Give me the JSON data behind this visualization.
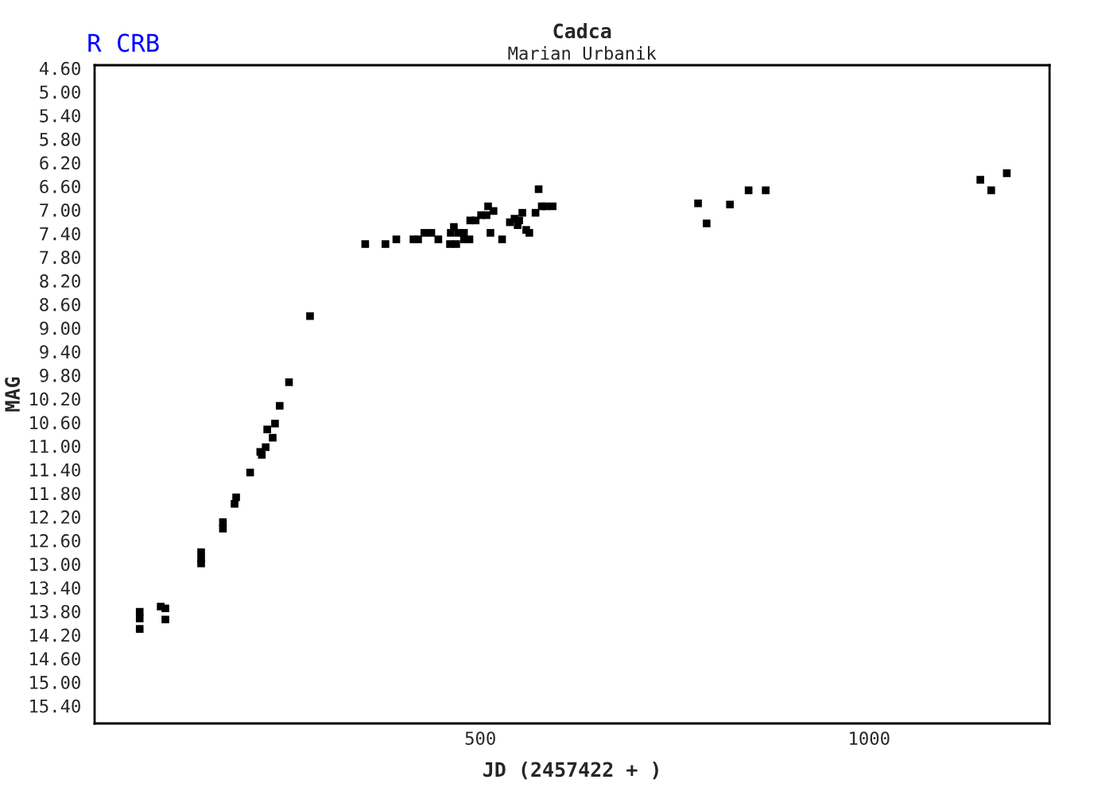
{
  "chart_data": {
    "type": "scatter",
    "title": "Cadca",
    "subtitle": "Marian Urbanik",
    "xlabel": "JD (2457422 + )",
    "ylabel": "MAG",
    "annotations": [
      "R CRB"
    ],
    "marker": "square",
    "grid": false,
    "xlim": [
      4,
      1232
    ],
    "xticks": [
      500,
      1000
    ],
    "ylim": [
      15.7,
      4.55
    ],
    "yticks": [
      {
        "value": 4.6,
        "label": "4.60"
      },
      {
        "value": 5.0,
        "label": "5.00"
      },
      {
        "value": 5.4,
        "label": "5.40"
      },
      {
        "value": 5.8,
        "label": "5.80"
      },
      {
        "value": 6.2,
        "label": "6.20"
      },
      {
        "value": 6.6,
        "label": "6.60"
      },
      {
        "value": 7.0,
        "label": "7.00"
      },
      {
        "value": 7.4,
        "label": "7.40"
      },
      {
        "value": 7.8,
        "label": "7.80"
      },
      {
        "value": 8.2,
        "label": "8.20"
      },
      {
        "value": 8.6,
        "label": "8.60"
      },
      {
        "value": 9.0,
        "label": "9.00"
      },
      {
        "value": 9.4,
        "label": "9.40"
      },
      {
        "value": 9.8,
        "label": "9.80"
      },
      {
        "value": 10.2,
        "label": "10.20"
      },
      {
        "value": 10.6,
        "label": "10.60"
      },
      {
        "value": 11.0,
        "label": "11.00"
      },
      {
        "value": 11.4,
        "label": "11.40"
      },
      {
        "value": 11.8,
        "label": "11.80"
      },
      {
        "value": 12.2,
        "label": "12.20"
      },
      {
        "value": 12.6,
        "label": "12.60"
      },
      {
        "value": 13.0,
        "label": "13.00"
      },
      {
        "value": 13.4,
        "label": "13.40"
      },
      {
        "value": 13.8,
        "label": "13.80"
      },
      {
        "value": 14.2,
        "label": "14.20"
      },
      {
        "value": 14.6,
        "label": "14.60"
      },
      {
        "value": 15.0,
        "label": "15.00"
      },
      {
        "value": 15.4,
        "label": "15.40"
      }
    ],
    "series": [
      {
        "color": "#000000",
        "x": [
          62,
          62,
          62,
          89,
          95,
          95,
          141,
          141,
          141,
          169,
          169,
          184,
          186,
          204,
          217,
          219,
          224,
          233,
          226,
          236,
          242,
          254,
          281,
          352,
          378,
          392,
          414,
          420,
          428,
          437,
          446,
          462,
          466,
          461,
          469,
          472,
          479,
          479,
          486,
          487,
          494,
          510,
          501,
          508,
          517,
          513,
          528,
          538,
          544,
          550,
          548,
          554,
          559,
          563,
          571,
          575,
          579,
          584,
          593,
          780,
          791,
          821,
          845,
          867,
          1143,
          1157,
          1177
        ],
        "values": [
          13.81,
          13.92,
          14.1,
          13.72,
          13.75,
          13.94,
          12.8,
          12.91,
          12.99,
          12.29,
          12.4,
          11.98,
          11.87,
          11.45,
          11.1,
          11.15,
          11.02,
          10.86,
          10.72,
          10.62,
          10.32,
          9.92,
          8.8,
          7.58,
          7.58,
          7.5,
          7.5,
          7.5,
          7.39,
          7.39,
          7.5,
          7.39,
          7.29,
          7.58,
          7.58,
          7.39,
          7.39,
          7.5,
          7.5,
          7.18,
          7.18,
          6.94,
          7.09,
          7.09,
          7.02,
          7.39,
          7.5,
          7.21,
          7.15,
          7.18,
          7.26,
          7.05,
          7.34,
          7.39,
          7.05,
          6.65,
          6.94,
          6.94,
          6.94,
          6.89,
          7.23,
          6.91,
          6.67,
          6.67,
          6.49,
          6.67,
          6.38
        ]
      }
    ]
  }
}
